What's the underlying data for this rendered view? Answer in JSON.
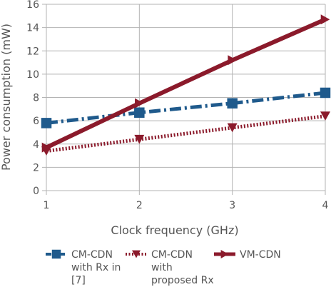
{
  "chart_data": {
    "type": "line",
    "title": "",
    "xlabel": "Clock frequency (GHz)",
    "ylabel": "Power consumption (mW)",
    "x": [
      1,
      2,
      3,
      4
    ],
    "x_ticks": [
      "1",
      "2",
      "3",
      "4"
    ],
    "xlim": [
      1,
      4
    ],
    "ylim": [
      0,
      16
    ],
    "y_ticks": [
      "0",
      "2",
      "4",
      "6",
      "8",
      "10",
      "12",
      "14",
      "16"
    ],
    "grid": true,
    "legend_position": "bottom",
    "series": [
      {
        "name_lines": [
          "CM-CDN",
          "with Rx in",
          "[7]"
        ],
        "values": [
          5.8,
          6.7,
          7.5,
          8.4
        ],
        "color": "#1f5a8c",
        "line_style": "dash-dot",
        "marker": "square"
      },
      {
        "name_lines": [
          "CM-CDN",
          "with",
          "proposed Rx"
        ],
        "values": [
          3.4,
          4.4,
          5.4,
          6.4
        ],
        "color": "#8b1a2b",
        "line_style": "dotted",
        "marker": "triangle-down"
      },
      {
        "name_lines": [
          "VM-CDN"
        ],
        "values": [
          3.7,
          7.5,
          11.2,
          14.7
        ],
        "color": "#8b1a2b",
        "line_style": "solid",
        "marker": "triangle-right"
      }
    ]
  }
}
